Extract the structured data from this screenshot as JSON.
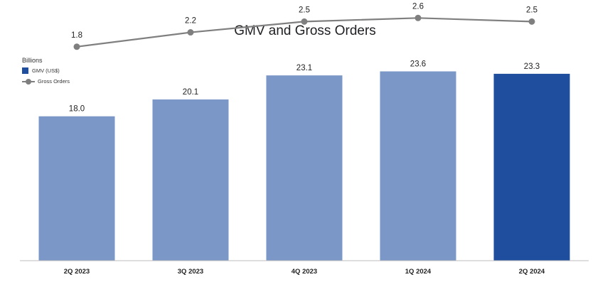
{
  "chart_data": {
    "type": "bar",
    "title": "GMV and Gross Orders",
    "unit_label": "Billions",
    "categories": [
      "2Q 2023",
      "3Q 2023",
      "4Q 2023",
      "1Q 2024",
      "2Q 2024"
    ],
    "series": [
      {
        "name": "GMV (US$)",
        "kind": "bar",
        "values": [
          18.0,
          20.1,
          23.1,
          23.6,
          23.3
        ],
        "colors": [
          "#7a97c8",
          "#7a97c8",
          "#7a97c8",
          "#7a97c8",
          "#1f4e9e"
        ]
      },
      {
        "name": "Gross Orders",
        "kind": "line",
        "values": [
          1.8,
          2.2,
          2.5,
          2.6,
          2.5
        ],
        "color": "#7f7f7f"
      }
    ],
    "bar_labels": [
      "18.0",
      "20.1",
      "23.1",
      "23.6",
      "23.3"
    ],
    "line_labels": [
      "1.8",
      "2.2",
      "2.5",
      "2.6",
      "2.5"
    ],
    "bar_ylim": [
      0,
      32.5
    ],
    "line_ylim": [
      -4.15,
      3.1
    ],
    "grid": false,
    "legend_position": "top-left"
  }
}
